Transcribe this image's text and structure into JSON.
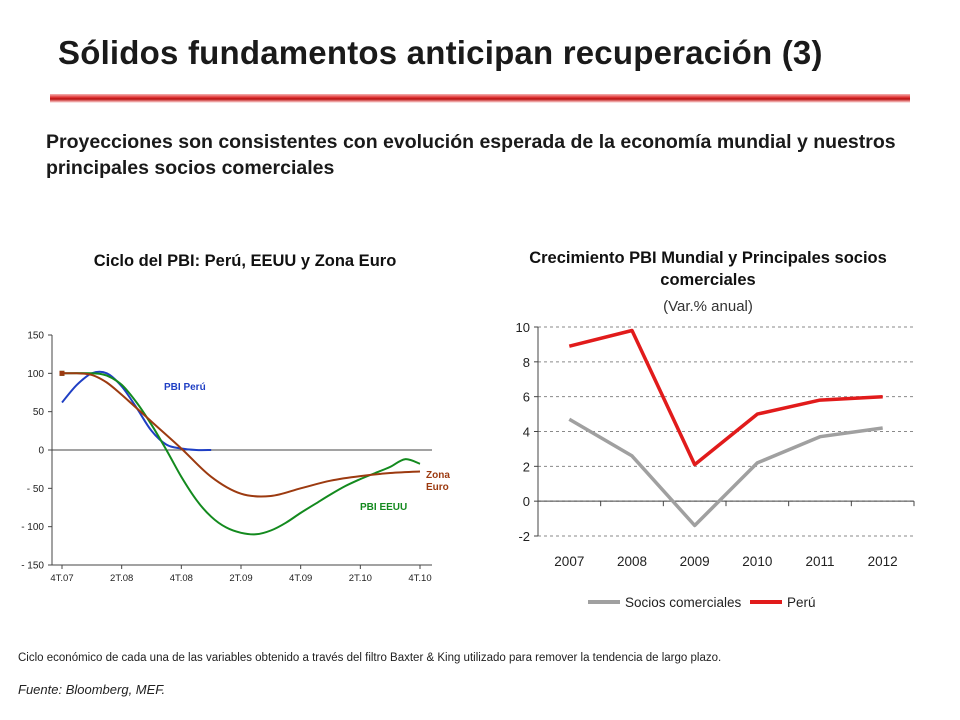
{
  "slide": {
    "title": "Sólidos fundamentos anticipan recuperación (3)",
    "subtitle": "Proyecciones son consistentes con evolución esperada de la economía mundial y nuestros principales socios comerciales",
    "footnote": "Ciclo económico de cada una de las variables obtenido a través del filtro Baxter & King utilizado para remover la tendencia de largo plazo.",
    "source": "Fuente: Bloomberg, MEF.",
    "accent_color": "#c0171b"
  },
  "chart_data": [
    {
      "type": "line",
      "title": "Ciclo del PBI: Perú, EEUU y Zona Euro",
      "categories": [
        "4T.07",
        "2T.08",
        "4T.08",
        "2T.09",
        "4T.09",
        "2T.10",
        "4T.10"
      ],
      "ylim": [
        -150,
        150
      ],
      "yticks": [
        150,
        100,
        50,
        0,
        -50,
        -100,
        -150
      ],
      "ytick_labels": [
        "150",
        "100",
        "50",
        "0",
        "- 50",
        "- 100",
        "- 150"
      ],
      "grid": false,
      "series": [
        {
          "name": "PBI Perú",
          "color": "#1f3fc4",
          "x": [
            0,
            0.5,
            1,
            1.5,
            2,
            2.5,
            3,
            3.5,
            4,
            4.5,
            5
          ],
          "values": [
            62,
            85,
            100,
            100,
            83,
            55,
            25,
            7,
            2,
            0,
            0
          ]
        },
        {
          "name": "PBI EEUU",
          "color": "#138a1e",
          "x": [
            0,
            1,
            1.5,
            2,
            2.5,
            3,
            3.5,
            4,
            4.5,
            5,
            5.5,
            6,
            6.5,
            7,
            7.5,
            8,
            8.5,
            9,
            9.5,
            10,
            10.5,
            11,
            11.5,
            12
          ],
          "values": [
            100,
            100,
            97,
            85,
            62,
            33,
            0,
            -35,
            -65,
            -87,
            -101,
            -108,
            -110,
            -105,
            -95,
            -82,
            -70,
            -58,
            -47,
            -38,
            -30,
            -22,
            -12,
            -18
          ]
        },
        {
          "name": "Zona Euro",
          "color": "#9c3a10",
          "x": [
            0,
            0.5,
            1,
            1.5,
            2,
            3,
            4,
            5,
            6,
            7,
            8,
            9,
            10,
            11,
            12
          ],
          "values": [
            100,
            100,
            98,
            88,
            72,
            37,
            2,
            -35,
            -57,
            -60,
            -50,
            -40,
            -34,
            -30,
            -28
          ]
        }
      ]
    },
    {
      "type": "line",
      "title": "Crecimiento PBI Mundial y Principales socios comerciales",
      "subtitle": "(Var.% anual)",
      "categories": [
        "2007",
        "2008",
        "2009",
        "2010",
        "2011",
        "2012"
      ],
      "ylim": [
        -2,
        10
      ],
      "yticks": [
        10,
        8,
        6,
        4,
        2,
        0,
        -2
      ],
      "grid": true,
      "legend_position": "bottom",
      "series": [
        {
          "name": "Socios comerciales",
          "color": "#a0a0a0",
          "values": [
            4.7,
            2.6,
            -1.4,
            2.2,
            3.7,
            4.2
          ]
        },
        {
          "name": "Perú",
          "color": "#e11b1b",
          "values": [
            8.9,
            9.8,
            2.1,
            5.0,
            5.8,
            6.0
          ]
        }
      ]
    }
  ]
}
